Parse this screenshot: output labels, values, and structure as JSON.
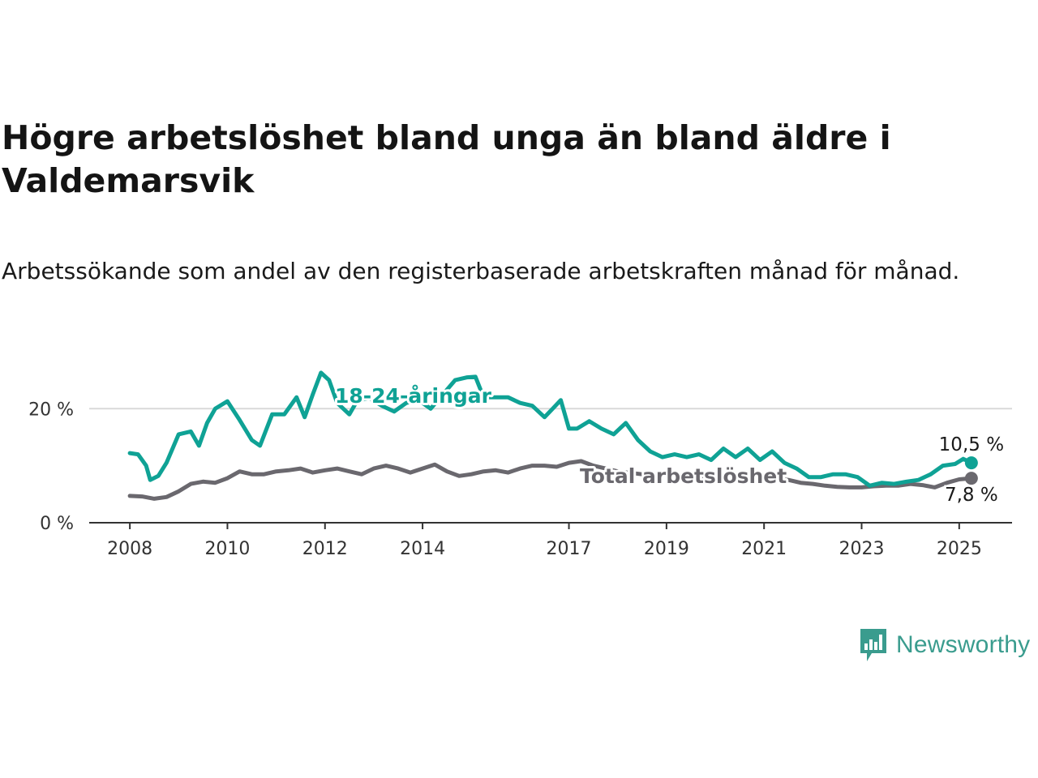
{
  "header": {
    "title": "Högre arbetslöshet bland unga än bland äldre i Valdemarsvik",
    "subtitle": "Arbetssökande som andel av den registerbaserade arbetskraften månad för månad."
  },
  "brand": {
    "name": "Newsworthy",
    "logo_icon": "bar-chart-bubble-icon",
    "color": "#3a9c8e"
  },
  "chart_data": {
    "type": "line",
    "title": "Högre arbetslöshet bland unga än bland äldre i Valdemarsvik",
    "subtitle": "Arbetssökande som andel av den registerbaserade arbetskraften månad för månad.",
    "xlabel": "",
    "ylabel": "",
    "x_ticks": [
      "2008",
      "2010",
      "2012",
      "2014",
      "2017",
      "2019",
      "2021",
      "2023",
      "2025"
    ],
    "y_ticks": [
      0,
      20
    ],
    "y_tick_labels": [
      "0 %",
      "20 %"
    ],
    "ylim": [
      0,
      27
    ],
    "xlim": [
      "2007-03",
      "2026-02"
    ],
    "grid": "horizontal",
    "colors": {
      "youth": "#0fa295",
      "total": "#6a686e",
      "grid": "#d9d9d9",
      "axis": "#333333"
    },
    "series": [
      {
        "name": "18-24-åringar",
        "color": "#0fa295",
        "end_label": "10,5 %",
        "points": [
          [
            "2008-01",
            12.2
          ],
          [
            "2008-03",
            12.0
          ],
          [
            "2008-05",
            10.0
          ],
          [
            "2008-06",
            7.5
          ],
          [
            "2008-08",
            8.2
          ],
          [
            "2008-10",
            10.5
          ],
          [
            "2009-01",
            15.5
          ],
          [
            "2009-04",
            16.0
          ],
          [
            "2009-06",
            13.5
          ],
          [
            "2009-08",
            17.5
          ],
          [
            "2009-10",
            20.0
          ],
          [
            "2010-01",
            21.3
          ],
          [
            "2010-04",
            18.0
          ],
          [
            "2010-07",
            14.5
          ],
          [
            "2010-09",
            13.5
          ],
          [
            "2010-12",
            19.0
          ],
          [
            "2011-03",
            19.0
          ],
          [
            "2011-06",
            22.0
          ],
          [
            "2011-08",
            18.5
          ],
          [
            "2011-10",
            22.5
          ],
          [
            "2011-12",
            26.3
          ],
          [
            "2012-02",
            25.0
          ],
          [
            "2012-04",
            21.0
          ],
          [
            "2012-07",
            19.0
          ],
          [
            "2012-09",
            21.5
          ],
          [
            "2012-12",
            21.8
          ],
          [
            "2013-03",
            20.5
          ],
          [
            "2013-06",
            19.5
          ],
          [
            "2013-09",
            21.0
          ],
          [
            "2013-12",
            21.5
          ],
          [
            "2014-03",
            20.0
          ],
          [
            "2014-06",
            22.5
          ],
          [
            "2014-09",
            25.0
          ],
          [
            "2014-12",
            25.5
          ],
          [
            "2015-02",
            25.6
          ],
          [
            "2015-04",
            22.0
          ],
          [
            "2015-07",
            22.0
          ],
          [
            "2015-10",
            22.0
          ],
          [
            "2016-01",
            21.0
          ],
          [
            "2016-04",
            20.5
          ],
          [
            "2016-07",
            18.5
          ],
          [
            "2016-09",
            20.0
          ],
          [
            "2016-11",
            21.5
          ],
          [
            "2017-01",
            16.5
          ],
          [
            "2017-03",
            16.5
          ],
          [
            "2017-06",
            17.8
          ],
          [
            "2017-09",
            16.5
          ],
          [
            "2017-12",
            15.5
          ],
          [
            "2018-03",
            17.5
          ],
          [
            "2018-06",
            14.5
          ],
          [
            "2018-09",
            12.5
          ],
          [
            "2018-12",
            11.5
          ],
          [
            "2019-03",
            12.0
          ],
          [
            "2019-06",
            11.5
          ],
          [
            "2019-09",
            12.0
          ],
          [
            "2019-12",
            11.0
          ],
          [
            "2020-03",
            13.0
          ],
          [
            "2020-06",
            11.5
          ],
          [
            "2020-09",
            13.0
          ],
          [
            "2020-12",
            11.0
          ],
          [
            "2021-03",
            12.5
          ],
          [
            "2021-06",
            10.5
          ],
          [
            "2021-09",
            9.5
          ],
          [
            "2021-12",
            8.0
          ],
          [
            "2022-03",
            8.0
          ],
          [
            "2022-06",
            8.5
          ],
          [
            "2022-09",
            8.5
          ],
          [
            "2022-12",
            8.0
          ],
          [
            "2023-03",
            6.5
          ],
          [
            "2023-06",
            7.0
          ],
          [
            "2023-09",
            6.8
          ],
          [
            "2023-12",
            7.2
          ],
          [
            "2024-03",
            7.5
          ],
          [
            "2024-06",
            8.5
          ],
          [
            "2024-09",
            10.0
          ],
          [
            "2024-12",
            10.3
          ],
          [
            "2025-02",
            11.2
          ],
          [
            "2025-04",
            10.5
          ]
        ]
      },
      {
        "name": "Total arbetslöshet",
        "color": "#6a686e",
        "end_label": "7,8 %",
        "points": [
          [
            "2008-01",
            4.7
          ],
          [
            "2008-04",
            4.6
          ],
          [
            "2008-07",
            4.2
          ],
          [
            "2008-10",
            4.5
          ],
          [
            "2009-01",
            5.5
          ],
          [
            "2009-04",
            6.8
          ],
          [
            "2009-07",
            7.2
          ],
          [
            "2009-10",
            7.0
          ],
          [
            "2010-01",
            7.8
          ],
          [
            "2010-04",
            9.0
          ],
          [
            "2010-07",
            8.5
          ],
          [
            "2010-10",
            8.5
          ],
          [
            "2011-01",
            9.0
          ],
          [
            "2011-04",
            9.2
          ],
          [
            "2011-07",
            9.5
          ],
          [
            "2011-10",
            8.8
          ],
          [
            "2012-01",
            9.2
          ],
          [
            "2012-04",
            9.5
          ],
          [
            "2012-07",
            9.0
          ],
          [
            "2012-10",
            8.5
          ],
          [
            "2013-01",
            9.5
          ],
          [
            "2013-04",
            10.0
          ],
          [
            "2013-07",
            9.5
          ],
          [
            "2013-10",
            8.8
          ],
          [
            "2014-01",
            9.5
          ],
          [
            "2014-04",
            10.2
          ],
          [
            "2014-07",
            9.0
          ],
          [
            "2014-10",
            8.2
          ],
          [
            "2015-01",
            8.5
          ],
          [
            "2015-04",
            9.0
          ],
          [
            "2015-07",
            9.2
          ],
          [
            "2015-10",
            8.8
          ],
          [
            "2016-01",
            9.5
          ],
          [
            "2016-04",
            10.0
          ],
          [
            "2016-07",
            10.0
          ],
          [
            "2016-10",
            9.8
          ],
          [
            "2017-01",
            10.5
          ],
          [
            "2017-04",
            10.8
          ],
          [
            "2017-07",
            10.0
          ],
          [
            "2017-10",
            9.5
          ],
          [
            "2018-01",
            9.0
          ],
          [
            "2018-07",
            8.5
          ],
          [
            "2019-01",
            8.5
          ],
          [
            "2019-07",
            8.2
          ],
          [
            "2020-01",
            8.0
          ],
          [
            "2020-07",
            8.2
          ],
          [
            "2021-01",
            8.0
          ],
          [
            "2021-07",
            7.5
          ],
          [
            "2021-10",
            7.0
          ],
          [
            "2022-01",
            6.8
          ],
          [
            "2022-04",
            6.5
          ],
          [
            "2022-07",
            6.3
          ],
          [
            "2022-10",
            6.2
          ],
          [
            "2023-01",
            6.2
          ],
          [
            "2023-04",
            6.4
          ],
          [
            "2023-07",
            6.5
          ],
          [
            "2023-10",
            6.5
          ],
          [
            "2024-01",
            6.8
          ],
          [
            "2024-04",
            6.6
          ],
          [
            "2024-07",
            6.2
          ],
          [
            "2024-10",
            7.0
          ],
          [
            "2025-01",
            7.6
          ],
          [
            "2025-04",
            7.8
          ]
        ]
      }
    ]
  }
}
